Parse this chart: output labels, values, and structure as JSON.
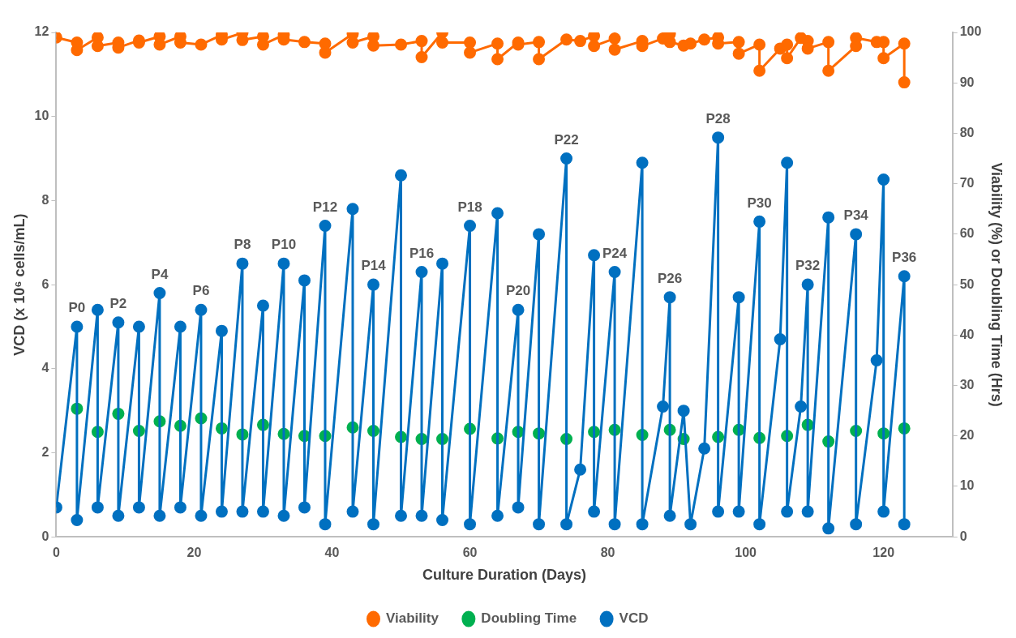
{
  "chart_data": {
    "type": "line",
    "xlabel": "Culture Duration (Days)",
    "ylabel": "VCD (x 10⁶ cells/mL)",
    "y2label": "Viability (%) or Doubling Time (Hrs)",
    "xlim": [
      0,
      130
    ],
    "xticks": [
      0,
      20,
      40,
      60,
      80,
      100,
      120
    ],
    "ylim": [
      0,
      12
    ],
    "yticks": [
      0,
      2,
      4,
      6,
      8,
      10,
      12
    ],
    "y2lim": [
      0,
      100
    ],
    "y2ticks": [
      0,
      10,
      20,
      30,
      40,
      50,
      60,
      70,
      80,
      90,
      100
    ],
    "legend": "bottom",
    "marker": "circle",
    "series": [
      {
        "name": "Viability",
        "type": "line",
        "axis": "y2",
        "color": "#ff6a00",
        "x": [
          0,
          3,
          3,
          6,
          6,
          9,
          9,
          12,
          12,
          15,
          15,
          18,
          18,
          21,
          24,
          24,
          27,
          27,
          30,
          30,
          33,
          33,
          36,
          39,
          39,
          43,
          43,
          46,
          46,
          50,
          53,
          53,
          56,
          56,
          60,
          60,
          64,
          64,
          67,
          67,
          70,
          70,
          74,
          76,
          78,
          78,
          81,
          81,
          85,
          85,
          88,
          89,
          89,
          91,
          92,
          94,
          96,
          96,
          99,
          99,
          102,
          102,
          105,
          106,
          106,
          108,
          109,
          109,
          112,
          112,
          116,
          116,
          119,
          120,
          120,
          123,
          123
        ],
        "values": [
          99.0,
          98.0,
          96.5,
          99.0,
          97.3,
          98.0,
          97.0,
          98.4,
          98.0,
          99.2,
          97.6,
          99.2,
          98.0,
          97.6,
          99.5,
          98.6,
          99.9,
          98.5,
          99.2,
          97.6,
          99.5,
          98.6,
          98.1,
          97.8,
          96.0,
          99.7,
          98.0,
          99.2,
          97.4,
          97.6,
          98.3,
          95.1,
          100.0,
          98.0,
          98.0,
          96.0,
          97.8,
          94.7,
          98.0,
          97.6,
          98.1,
          94.7,
          98.6,
          98.3,
          99.3,
          97.3,
          98.8,
          96.6,
          98.3,
          97.3,
          98.8,
          99.7,
          98.1,
          97.4,
          97.8,
          98.6,
          99.0,
          97.8,
          98.1,
          95.8,
          97.6,
          92.4,
          96.8,
          97.6,
          94.9,
          98.9,
          98.3,
          96.8,
          98.1,
          92.4,
          97.3,
          98.9,
          98.1,
          98.1,
          94.9,
          97.8,
          90.1
        ]
      },
      {
        "name": "Doubling Time",
        "type": "scatter",
        "axis": "y2",
        "color": "#00b050",
        "x": [
          3,
          6,
          9,
          12,
          15,
          18,
          21,
          24,
          27,
          30,
          33,
          36,
          39,
          43,
          46,
          50,
          53,
          56,
          60,
          64,
          67,
          70,
          74,
          78,
          81,
          85,
          89,
          91,
          96,
          99,
          102,
          106,
          109,
          112,
          116,
          120,
          123
        ],
        "values": [
          25.4,
          20.8,
          24.4,
          21.0,
          22.9,
          22.0,
          23.5,
          21.5,
          20.3,
          22.2,
          20.4,
          20.0,
          20.0,
          21.7,
          21.0,
          19.8,
          19.4,
          19.4,
          21.4,
          19.5,
          20.8,
          20.5,
          19.4,
          20.8,
          21.2,
          20.2,
          21.2,
          19.4,
          19.8,
          21.2,
          19.6,
          20.0,
          22.2,
          18.9,
          21.0,
          20.5,
          21.5
        ]
      },
      {
        "name": "VCD",
        "type": "line",
        "axis": "y",
        "color": "#0070c0",
        "x": [
          0,
          3,
          3,
          6,
          6,
          9,
          9,
          12,
          12,
          15,
          15,
          18,
          18,
          21,
          21,
          24,
          24,
          27,
          27,
          30,
          30,
          33,
          33,
          36,
          36,
          39,
          39,
          43,
          43,
          46,
          46,
          50,
          50,
          53,
          53,
          56,
          56,
          60,
          60,
          64,
          64,
          67,
          67,
          70,
          70,
          74,
          74,
          76,
          78,
          78,
          81,
          81,
          85,
          85,
          88,
          89,
          89,
          91,
          92,
          94,
          96,
          96,
          99,
          99,
          102,
          102,
          105,
          106,
          106,
          108,
          109,
          109,
          112,
          112,
          116,
          116,
          119,
          120,
          120,
          123,
          123
        ],
        "values": [
          0.7,
          5.0,
          0.4,
          5.4,
          0.7,
          5.1,
          0.5,
          5.0,
          0.7,
          5.8,
          0.5,
          5.0,
          0.7,
          5.4,
          0.5,
          4.9,
          0.6,
          6.5,
          0.6,
          5.5,
          0.6,
          6.5,
          0.5,
          6.1,
          0.7,
          7.4,
          0.3,
          7.8,
          0.6,
          6.0,
          0.3,
          8.6,
          0.5,
          6.3,
          0.5,
          6.5,
          0.4,
          7.4,
          0.3,
          7.7,
          0.5,
          5.4,
          0.7,
          7.2,
          0.3,
          9.0,
          0.3,
          1.6,
          6.7,
          0.6,
          6.3,
          0.3,
          8.9,
          0.3,
          3.1,
          5.7,
          0.5,
          3.0,
          0.3,
          2.1,
          9.5,
          0.6,
          5.7,
          0.6,
          7.5,
          0.3,
          4.7,
          8.9,
          0.6,
          3.1,
          6.0,
          0.6,
          7.6,
          0.2,
          7.2,
          0.3,
          4.2,
          8.5,
          0.6,
          6.2,
          0.3
        ]
      }
    ],
    "annotations": [
      {
        "text": "P0",
        "x": 3,
        "y": 5.0
      },
      {
        "text": "P2",
        "x": 9,
        "y": 5.1
      },
      {
        "text": "P4",
        "x": 15,
        "y": 5.8
      },
      {
        "text": "P6",
        "x": 21,
        "y": 5.4
      },
      {
        "text": "P8",
        "x": 27,
        "y": 6.5
      },
      {
        "text": "P10",
        "x": 33,
        "y": 6.5
      },
      {
        "text": "P12",
        "x": 39,
        "y": 7.4
      },
      {
        "text": "P14",
        "x": 46,
        "y": 6.0
      },
      {
        "text": "P16",
        "x": 53,
        "y": 6.3
      },
      {
        "text": "P18",
        "x": 60,
        "y": 7.4
      },
      {
        "text": "P20",
        "x": 67,
        "y": 5.4
      },
      {
        "text": "P22",
        "x": 74,
        "y": 9.0
      },
      {
        "text": "P24",
        "x": 81,
        "y": 6.3
      },
      {
        "text": "P26",
        "x": 89,
        "y": 5.7
      },
      {
        "text": "P28",
        "x": 96,
        "y": 9.5
      },
      {
        "text": "P30",
        "x": 102,
        "y": 7.5
      },
      {
        "text": "P32",
        "x": 109,
        "y": 6.0
      },
      {
        "text": "P34",
        "x": 116,
        "y": 7.2
      },
      {
        "text": "P36",
        "x": 123,
        "y": 6.2
      }
    ]
  }
}
